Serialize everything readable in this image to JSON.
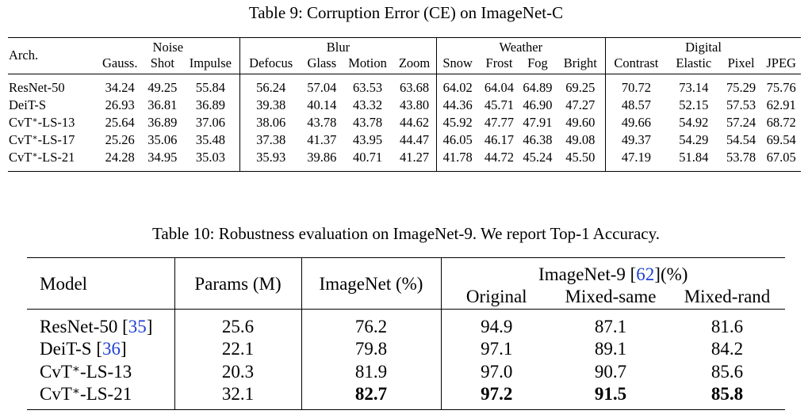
{
  "table9": {
    "caption": "Table 9: Corruption Error (CE) on ImageNet-C",
    "arch_header": "Arch.",
    "groups": [
      "Noise",
      "Blur",
      "Weather",
      "Digital"
    ],
    "columns": [
      "Gauss.",
      "Shot",
      "Impulse",
      "Defocus",
      "Glass",
      "Motion",
      "Zoom",
      "Snow",
      "Frost",
      "Fog",
      "Bright",
      "Contrast",
      "Elastic",
      "Pixel",
      "JPEG"
    ],
    "rows": [
      {
        "arch": "ResNet-50",
        "values": [
          "34.24",
          "49.25",
          "55.84",
          "56.24",
          "57.04",
          "63.53",
          "63.68",
          "64.02",
          "64.04",
          "64.89",
          "69.25",
          "70.72",
          "73.14",
          "75.29",
          "75.76"
        ]
      },
      {
        "arch": "DeiT-S",
        "values": [
          "26.93",
          "36.81",
          "36.89",
          "39.38",
          "40.14",
          "43.32",
          "43.80",
          "44.36",
          "45.71",
          "46.90",
          "47.27",
          "48.57",
          "52.15",
          "57.53",
          "62.91"
        ]
      },
      {
        "arch_base": "CvT",
        "arch_sup": "∗",
        "arch_suffix": "-LS-13",
        "values": [
          "25.64",
          "36.89",
          "37.06",
          "38.06",
          "43.78",
          "43.78",
          "44.62",
          "45.92",
          "47.77",
          "47.91",
          "49.60",
          "49.66",
          "54.92",
          "57.24",
          "68.72"
        ]
      },
      {
        "arch_base": "CvT",
        "arch_sup": "∗",
        "arch_suffix": "-LS-17",
        "values": [
          "25.26",
          "35.06",
          "35.48",
          "37.38",
          "41.37",
          "43.95",
          "44.47",
          "46.05",
          "46.17",
          "46.38",
          "49.08",
          "49.37",
          "54.29",
          "54.54",
          "69.54"
        ]
      },
      {
        "arch_base": "CvT",
        "arch_sup": "∗",
        "arch_suffix": "-LS-21",
        "values": [
          "24.28",
          "34.95",
          "35.03",
          "35.93",
          "39.86",
          "40.71",
          "41.27",
          "41.78",
          "44.72",
          "45.24",
          "45.50",
          "47.19",
          "51.84",
          "53.78",
          "67.05"
        ]
      }
    ]
  },
  "table10": {
    "caption": "Table 10: Robustness evaluation on ImageNet-9. We report Top-1 Accuracy.",
    "headers": {
      "model": "Model",
      "params": "Params (M)",
      "imagenet": "ImageNet (%)",
      "imagenet9_prefix": "ImageNet-9 [",
      "imagenet9_cite": "62",
      "imagenet9_suffix": "](%)",
      "original": "Original",
      "mixed_same": "Mixed-same",
      "mixed_rand": "Mixed-rand"
    },
    "rows": [
      {
        "model": "ResNet-50 ",
        "cite": "35",
        "params": "25.6",
        "imagenet": "76.2",
        "original": "94.9",
        "mixed_same": "87.1",
        "mixed_rand": "81.6"
      },
      {
        "model": "DeiT-S ",
        "cite": "36",
        "params": "22.1",
        "imagenet": "79.8",
        "original": "97.1",
        "mixed_same": "89.1",
        "mixed_rand": "84.2"
      },
      {
        "model_base": "CvT",
        "model_sup": "∗",
        "model_suffix": "-LS-13",
        "params": "20.3",
        "imagenet": "81.9",
        "original": "97.0",
        "mixed_same": "90.7",
        "mixed_rand": "85.6"
      },
      {
        "model_base": "CvT",
        "model_sup": "∗",
        "model_suffix": "-LS-21",
        "params": "32.1",
        "imagenet": "82.7",
        "original": "97.2",
        "mixed_same": "91.5",
        "mixed_rand": "85.8"
      }
    ]
  }
}
